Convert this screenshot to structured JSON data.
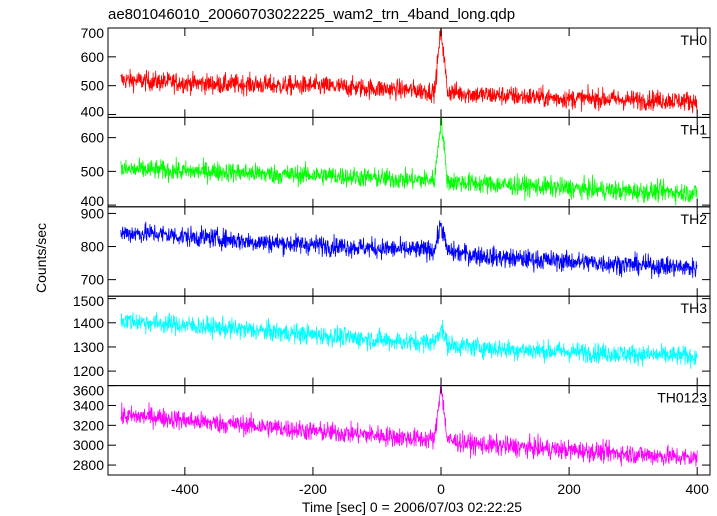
{
  "chart_data": {
    "type": "line",
    "title": "ae801046010_20060703022225_wam2_trn_4band_long.qdp",
    "xlabel": "Time [sec] 0 = 2006/07/03 02:22:25",
    "ylabel": "Counts/sec",
    "xlim": [
      -520,
      420
    ],
    "xticks": [
      -400,
      -200,
      0,
      200,
      400
    ],
    "grid": false,
    "panels": [
      {
        "name": "TH0",
        "color": "#ff0000",
        "ylim": [
          390,
          700
        ],
        "yticks": [
          400,
          500,
          600,
          700
        ],
        "x": [
          -500,
          -450,
          -400,
          -350,
          -300,
          -250,
          -200,
          -150,
          -100,
          -50,
          -10,
          0,
          10,
          50,
          100,
          150,
          200,
          250,
          300,
          350,
          400
        ],
        "y": [
          520,
          515,
          510,
          505,
          505,
          500,
          500,
          495,
          490,
          485,
          480,
          700,
          480,
          470,
          465,
          460,
          455,
          455,
          450,
          450,
          445
        ]
      },
      {
        "name": "TH1",
        "color": "#00ff00",
        "ylim": [
          395,
          660
        ],
        "yticks": [
          400,
          500,
          600
        ],
        "x": [
          -500,
          -450,
          -400,
          -350,
          -300,
          -250,
          -200,
          -150,
          -100,
          -50,
          -10,
          0,
          10,
          50,
          100,
          150,
          200,
          250,
          300,
          350,
          400
        ],
        "y": [
          505,
          505,
          500,
          500,
          495,
          490,
          490,
          485,
          480,
          475,
          475,
          660,
          470,
          465,
          460,
          455,
          450,
          445,
          440,
          440,
          435
        ]
      },
      {
        "name": "TH2",
        "color": "#0000ff",
        "ylim": [
          650,
          920
        ],
        "yticks": [
          700,
          800,
          900
        ],
        "x": [
          -500,
          -450,
          -400,
          -350,
          -300,
          -250,
          -200,
          -150,
          -100,
          -50,
          -10,
          0,
          10,
          50,
          100,
          150,
          200,
          250,
          300,
          350,
          400
        ],
        "y": [
          840,
          840,
          830,
          825,
          815,
          810,
          805,
          800,
          795,
          790,
          790,
          870,
          785,
          775,
          765,
          760,
          755,
          750,
          745,
          740,
          735
        ]
      },
      {
        "name": "TH3",
        "color": "#00ffff",
        "ylim": [
          1140,
          1510
        ],
        "yticks": [
          1200,
          1300,
          1400,
          1500
        ],
        "x": [
          -500,
          -450,
          -400,
          -350,
          -300,
          -250,
          -200,
          -150,
          -100,
          -50,
          -10,
          0,
          10,
          50,
          100,
          150,
          200,
          250,
          300,
          350,
          400
        ],
        "y": [
          1410,
          1400,
          1390,
          1380,
          1370,
          1360,
          1350,
          1340,
          1330,
          1320,
          1320,
          1380,
          1310,
          1300,
          1290,
          1285,
          1280,
          1275,
          1270,
          1265,
          1260
        ]
      },
      {
        "name": "TH0123",
        "color": "#ff00ff",
        "ylim": [
          2700,
          3600
        ],
        "yticks": [
          2800,
          3000,
          3200,
          3400,
          3600
        ],
        "x": [
          -500,
          -450,
          -400,
          -350,
          -300,
          -250,
          -200,
          -150,
          -100,
          -50,
          -10,
          0,
          10,
          50,
          100,
          150,
          200,
          250,
          300,
          350,
          400
        ],
        "y": [
          3290,
          3290,
          3250,
          3220,
          3200,
          3170,
          3140,
          3120,
          3100,
          3070,
          3060,
          3600,
          3050,
          3010,
          2990,
          2970,
          2950,
          2930,
          2910,
          2890,
          2870
        ]
      }
    ]
  }
}
